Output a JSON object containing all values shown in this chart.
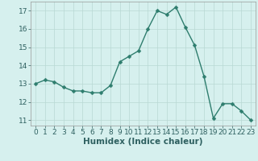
{
  "x": [
    0,
    1,
    2,
    3,
    4,
    5,
    6,
    7,
    8,
    9,
    10,
    11,
    12,
    13,
    14,
    15,
    16,
    17,
    18,
    19,
    20,
    21,
    22,
    23
  ],
  "y": [
    13.0,
    13.2,
    13.1,
    12.8,
    12.6,
    12.6,
    12.5,
    12.5,
    12.9,
    14.2,
    14.5,
    14.8,
    16.0,
    17.0,
    16.8,
    17.2,
    16.1,
    15.1,
    13.4,
    11.1,
    11.9,
    11.9,
    11.5,
    11.0
  ],
  "line_color": "#2e7d6e",
  "marker_color": "#2e7d6e",
  "bg_color": "#d6f0ee",
  "grid_color": "#b8d8d4",
  "xlabel": "Humidex (Indice chaleur)",
  "ylim": [
    10.7,
    17.5
  ],
  "xlim": [
    -0.5,
    23.5
  ],
  "yticks": [
    11,
    12,
    13,
    14,
    15,
    16,
    17
  ],
  "xticks": [
    0,
    1,
    2,
    3,
    4,
    5,
    6,
    7,
    8,
    9,
    10,
    11,
    12,
    13,
    14,
    15,
    16,
    17,
    18,
    19,
    20,
    21,
    22,
    23
  ],
  "tick_fontsize": 6.5,
  "xlabel_fontsize": 7.5,
  "linewidth": 1.0,
  "markersize": 2.5
}
